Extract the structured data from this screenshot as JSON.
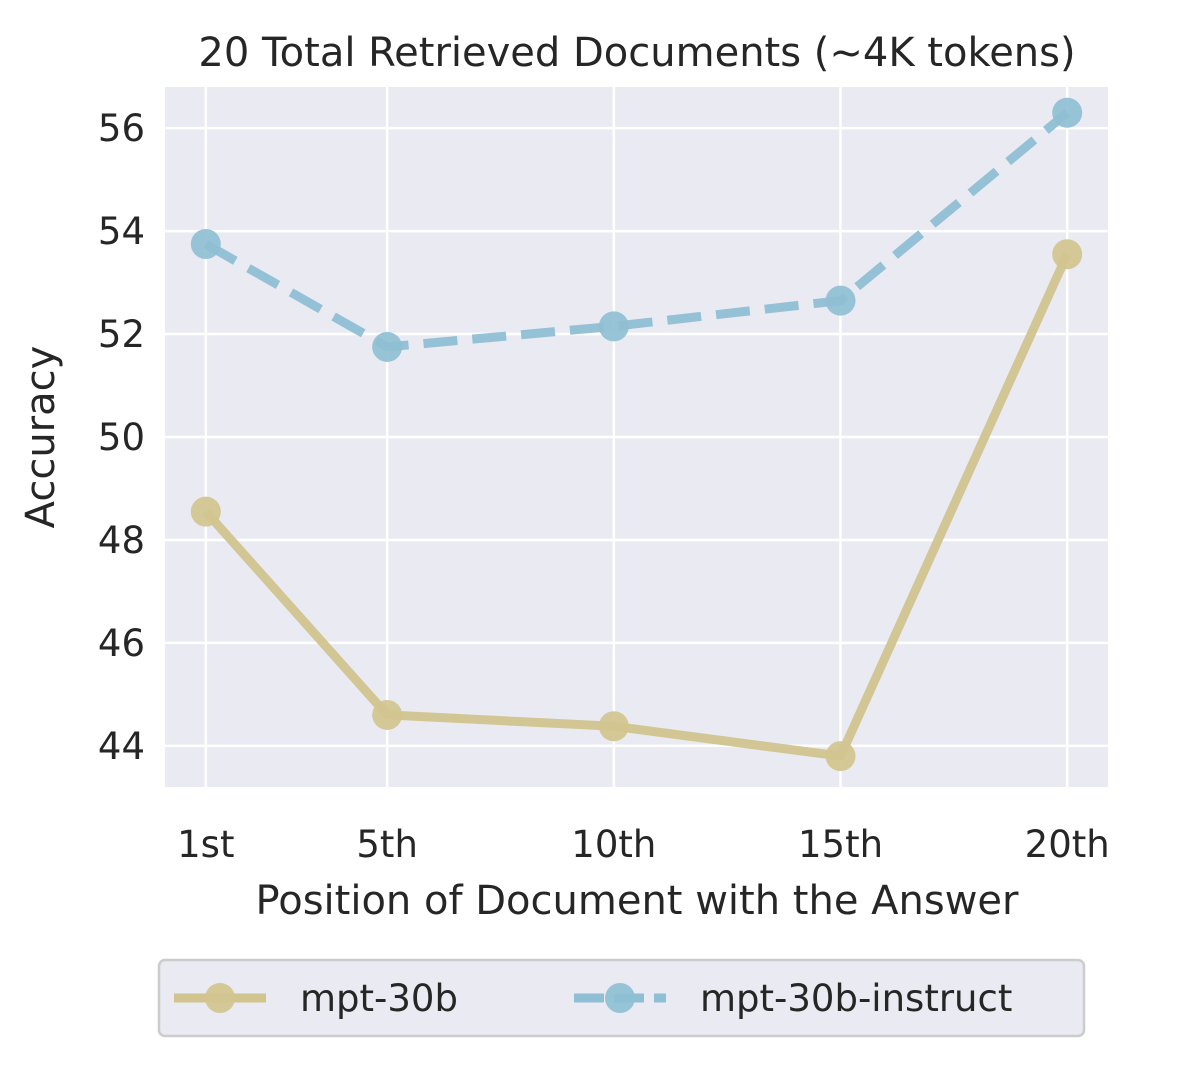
{
  "chart_data": {
    "type": "line",
    "title": "20 Total Retrieved Documents (~4K tokens)",
    "xlabel": "Position of Document with the Answer",
    "ylabel": "Accuracy",
    "categories": [
      "1st",
      "5th",
      "10th",
      "15th",
      "20th"
    ],
    "x": [
      1,
      5,
      10,
      15,
      20
    ],
    "ylim": [
      43.2,
      56.8
    ],
    "xlim": [
      0.1,
      20.9
    ],
    "yticks": [
      44,
      46,
      48,
      50,
      52,
      54,
      56
    ],
    "grid": true,
    "legend_position": "bottom-center",
    "series": [
      {
        "name": "mpt-30b",
        "values": [
          48.55,
          44.6,
          44.38,
          43.8,
          53.55
        ],
        "color": "#d1c48f",
        "line_style": "solid",
        "marker": "circle"
      },
      {
        "name": "mpt-30b-instruct",
        "values": [
          53.75,
          51.75,
          52.15,
          52.65,
          56.3
        ],
        "color": "#8fbfd4",
        "line_style": "dashed",
        "marker": "circle"
      }
    ],
    "colors": {
      "plot_background": "#eaeaf2",
      "grid": "#ffffff",
      "text": "#262626",
      "legend_border": "#cccccc"
    }
  }
}
